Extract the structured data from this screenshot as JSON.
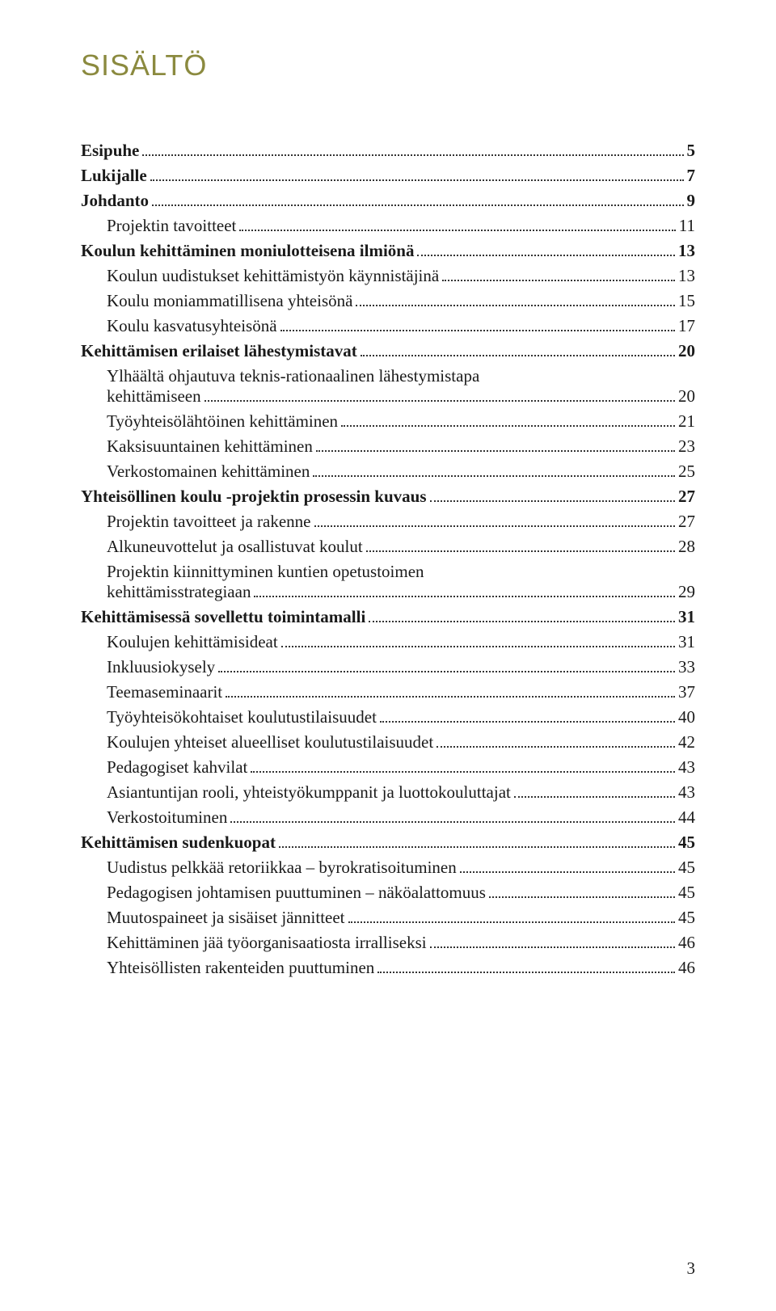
{
  "title": "SISÄLTÖ",
  "page_number": "3",
  "colors": {
    "title_color": "#8b8a3f",
    "text_color": "#1a1a1a",
    "background": "#ffffff"
  },
  "typography": {
    "title_fontsize": 36,
    "body_fontsize": 21,
    "title_family": "Arial",
    "body_family": "Georgia"
  },
  "toc": [
    {
      "label": "Esipuhe",
      "page": "5",
      "bold": true,
      "indent": 0
    },
    {
      "label": "Lukijalle",
      "page": "7",
      "bold": true,
      "indent": 0
    },
    {
      "label": "Johdanto",
      "page": "9",
      "bold": true,
      "indent": 0
    },
    {
      "label": "Projektin tavoitteet",
      "page": "11",
      "bold": false,
      "indent": 1
    },
    {
      "label": "Koulun kehittäminen moniulotteisena ilmiönä",
      "page": "13",
      "bold": true,
      "indent": 0
    },
    {
      "label": "Koulun uudistukset kehittämistyön käynnistäjinä",
      "page": "13",
      "bold": false,
      "indent": 1
    },
    {
      "label": "Koulu moniammatillisena yhteisönä",
      "page": "15",
      "bold": false,
      "indent": 1
    },
    {
      "label": "Koulu kasvatusyhteisönä",
      "page": "17",
      "bold": false,
      "indent": 1
    },
    {
      "label": "Kehittämisen erilaiset lähestymistavat",
      "page": "20",
      "bold": true,
      "indent": 0
    },
    {
      "label": "Ylhäältä ohjautuva teknis-rationaalinen lähestymistapa kehittämiseen",
      "page": "20",
      "bold": false,
      "indent": 1,
      "multiline": true
    },
    {
      "label": "Työyhteisölähtöinen kehittäminen",
      "page": "21",
      "bold": false,
      "indent": 1
    },
    {
      "label": "Kaksisuuntainen kehittäminen",
      "page": "23",
      "bold": false,
      "indent": 1
    },
    {
      "label": "Verkostomainen kehittäminen",
      "page": "25",
      "bold": false,
      "indent": 1
    },
    {
      "label": "Yhteisöllinen koulu -projektin prosessin kuvaus",
      "page": "27",
      "bold": true,
      "indent": 0
    },
    {
      "label": "Projektin tavoitteet ja rakenne",
      "page": "27",
      "bold": false,
      "indent": 1
    },
    {
      "label": "Alkuneuvottelut ja osallistuvat koulut",
      "page": "28",
      "bold": false,
      "indent": 1
    },
    {
      "label": "Projektin kiinnittyminen kuntien opetustoimen kehittämisstrategiaan",
      "page": "29",
      "bold": false,
      "indent": 1,
      "multiline": true
    },
    {
      "label": "Kehittämisessä sovellettu toimintamalli",
      "page": "31",
      "bold": true,
      "indent": 0
    },
    {
      "label": "Koulujen kehittämisideat",
      "page": "31",
      "bold": false,
      "indent": 1
    },
    {
      "label": "Inkluusiokysely",
      "page": "33",
      "bold": false,
      "indent": 1
    },
    {
      "label": "Teemaseminaarit",
      "page": "37",
      "bold": false,
      "indent": 1
    },
    {
      "label": "Työyhteisökohtaiset koulutustilaisuudet",
      "page": "40",
      "bold": false,
      "indent": 1
    },
    {
      "label": "Koulujen yhteiset alueelliset koulutustilaisuudet",
      "page": "42",
      "bold": false,
      "indent": 1
    },
    {
      "label": "Pedagogiset kahvilat",
      "page": "43",
      "bold": false,
      "indent": 1
    },
    {
      "label": "Asiantuntijan rooli, yhteistyökumppanit ja luottokouluttajat",
      "page": "43",
      "bold": false,
      "indent": 1
    },
    {
      "label": "Verkostoituminen",
      "page": "44",
      "bold": false,
      "indent": 1
    },
    {
      "label": "Kehittämisen sudenkuopat",
      "page": "45",
      "bold": true,
      "indent": 0
    },
    {
      "label": "Uudistus pelkkää retoriikkaa – byrokratisoituminen",
      "page": "45",
      "bold": false,
      "indent": 1
    },
    {
      "label": "Pedagogisen johtamisen puuttuminen – näköalattomuus",
      "page": "45",
      "bold": false,
      "indent": 1
    },
    {
      "label": "Muutospaineet ja sisäiset jännitteet",
      "page": "45",
      "bold": false,
      "indent": 1
    },
    {
      "label": "Kehittäminen jää työorganisaatiosta irralliseksi",
      "page": "46",
      "bold": false,
      "indent": 1
    },
    {
      "label": "Yhteisöllisten rakenteiden puuttuminen",
      "page": "46",
      "bold": false,
      "indent": 1
    }
  ]
}
